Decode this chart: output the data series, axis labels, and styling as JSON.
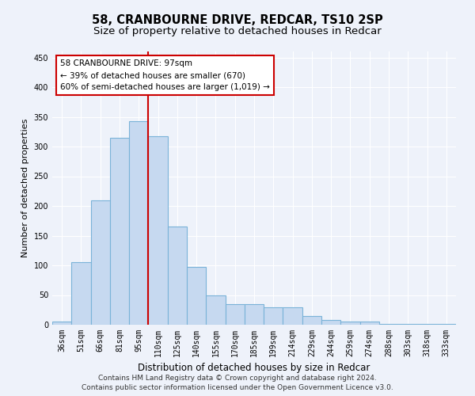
{
  "title": "58, CRANBOURNE DRIVE, REDCAR, TS10 2SP",
  "subtitle": "Size of property relative to detached houses in Redcar",
  "xlabel": "Distribution of detached houses by size in Redcar",
  "ylabel": "Number of detached properties",
  "categories": [
    "36sqm",
    "51sqm",
    "66sqm",
    "81sqm",
    "95sqm",
    "110sqm",
    "125sqm",
    "140sqm",
    "155sqm",
    "170sqm",
    "185sqm",
    "199sqm",
    "214sqm",
    "229sqm",
    "244sqm",
    "259sqm",
    "274sqm",
    "288sqm",
    "303sqm",
    "318sqm",
    "333sqm"
  ],
  "values": [
    6,
    105,
    210,
    315,
    343,
    318,
    165,
    97,
    50,
    35,
    35,
    29,
    29,
    15,
    8,
    5,
    5,
    2,
    1,
    1,
    1
  ],
  "bar_color": "#c6d9f0",
  "bar_edge_color": "#7ab3d8",
  "vline_x": 4.5,
  "vline_color": "#cc0000",
  "annotation_text": "58 CRANBOURNE DRIVE: 97sqm\n← 39% of detached houses are smaller (670)\n60% of semi-detached houses are larger (1,019) →",
  "annotation_box_color": "#ffffff",
  "annotation_box_edge_color": "#cc0000",
  "ylim": [
    0,
    460
  ],
  "yticks": [
    0,
    50,
    100,
    150,
    200,
    250,
    300,
    350,
    400,
    450
  ],
  "footer1": "Contains HM Land Registry data © Crown copyright and database right 2024.",
  "footer2": "Contains public sector information licensed under the Open Government Licence v3.0.",
  "title_fontsize": 10.5,
  "subtitle_fontsize": 9.5,
  "tick_fontsize": 7,
  "xlabel_fontsize": 8.5,
  "ylabel_fontsize": 8,
  "annotation_fontsize": 7.5,
  "footer_fontsize": 6.5,
  "background_color": "#eef2fa"
}
